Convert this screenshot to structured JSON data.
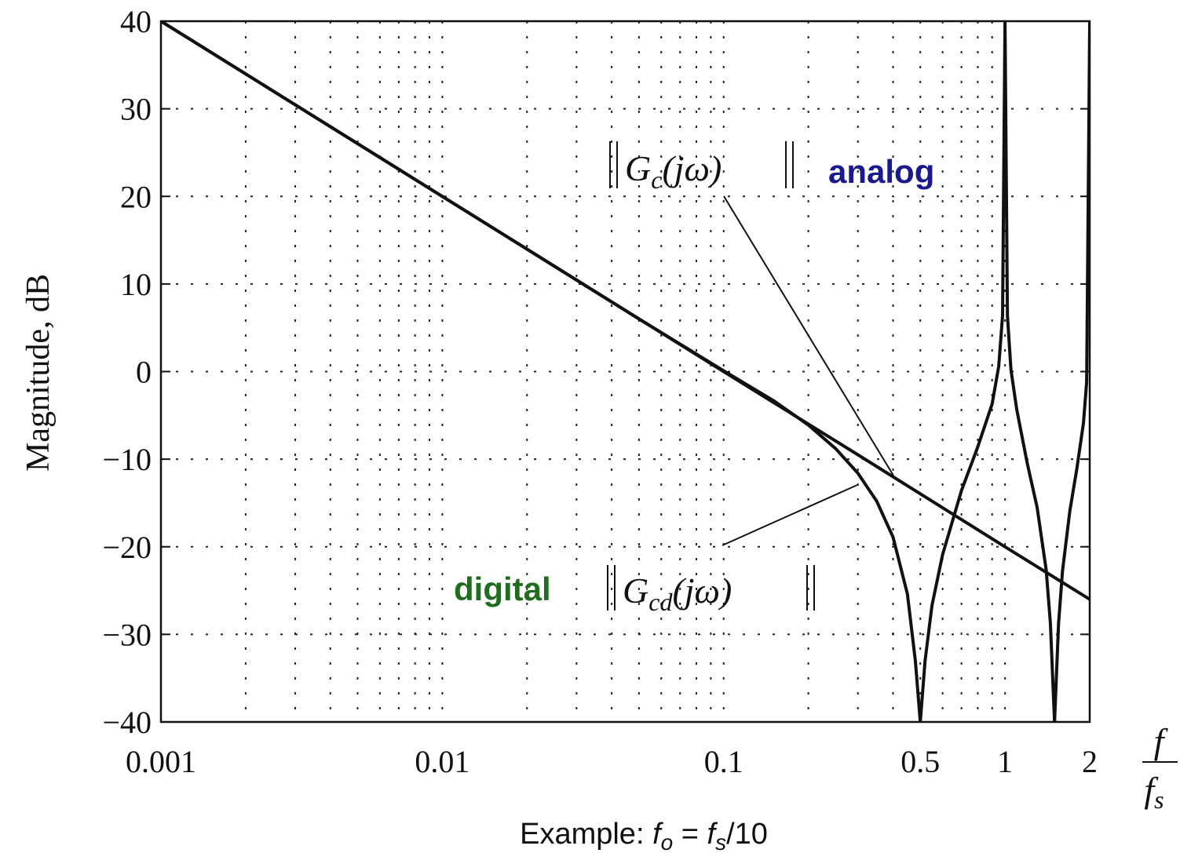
{
  "chart_data": {
    "type": "line",
    "ylabel": "Magnitude, dB",
    "xlabel": {
      "num": "f",
      "den_base": "f",
      "den_sub": "s"
    },
    "x_scale": "log",
    "xlim": [
      0.001,
      2
    ],
    "ylim": [
      -40,
      40
    ],
    "grid": true,
    "x_ticks": [
      {
        "value": 0.001,
        "label": "0.001"
      },
      {
        "value": 0.01,
        "label": "0.01"
      },
      {
        "value": 0.1,
        "label": "0.1"
      },
      {
        "value": 0.5,
        "label": "0.5"
      },
      {
        "value": 1,
        "label": "1"
      },
      {
        "value": 2,
        "label": "2"
      }
    ],
    "y_ticks": [
      {
        "value": 40,
        "label": "40"
      },
      {
        "value": 30,
        "label": "30"
      },
      {
        "value": 20,
        "label": "20"
      },
      {
        "value": 10,
        "label": "10"
      },
      {
        "value": 0,
        "label": "0"
      },
      {
        "value": -10,
        "label": "−10"
      },
      {
        "value": -20,
        "label": "−20"
      },
      {
        "value": -30,
        "label": "−30"
      },
      {
        "value": -40,
        "label": "−40"
      }
    ],
    "series": [
      {
        "x": [
          0.001,
          0.01,
          0.1,
          0.3,
          1,
          2
        ],
        "y": [
          40,
          20,
          0,
          -9.5,
          -20,
          -26
        ]
      },
      {
        "x": [
          0.001,
          0.01,
          0.05,
          0.1,
          0.15,
          0.2,
          0.25,
          0.3,
          0.35,
          0.4,
          0.45,
          0.48,
          0.5,
          0.52,
          0.55,
          0.6,
          0.7,
          0.8,
          0.9,
          0.95,
          0.98,
          1.0,
          1.02,
          1.05,
          1.1,
          1.2,
          1.3,
          1.4,
          1.45,
          1.5,
          1.55,
          1.6,
          1.7,
          1.8,
          1.9,
          1.95,
          2.0
        ],
        "y": [
          40,
          20,
          6,
          0.1,
          -3.3,
          -6.1,
          -8.8,
          -11.6,
          -14.8,
          -18.9,
          -25.4,
          -33,
          -40,
          -33,
          -26.7,
          -20.9,
          -13.6,
          -8.6,
          -3.7,
          0.6,
          6.4,
          40,
          6.4,
          0.2,
          -4.3,
          -10.5,
          -15.5,
          -22.6,
          -28.7,
          -40,
          -28.8,
          -22.8,
          -15.9,
          -11.1,
          -5.9,
          -1.2,
          40
        ]
      }
    ],
    "annotations": {
      "analog": {
        "expr_main": "G",
        "expr_sub": "c",
        "expr_arg": "(jω)",
        "tag": "analog"
      },
      "digital": {
        "expr_main": "G",
        "expr_sub": "cd",
        "expr_arg": "(jω)",
        "tag": "digital"
      }
    },
    "caption": {
      "prefix": "Example: ",
      "lhs": "f",
      "lhs_sub": "o",
      "mid": " = ",
      "rhs": "f",
      "rhs_sub": "s",
      "suffix": "/10"
    }
  },
  "colors": {
    "analog_tag": "#1a1a8c",
    "digital_tag": "#1e6e1e",
    "curve": "#111111",
    "grid": "#222222"
  }
}
